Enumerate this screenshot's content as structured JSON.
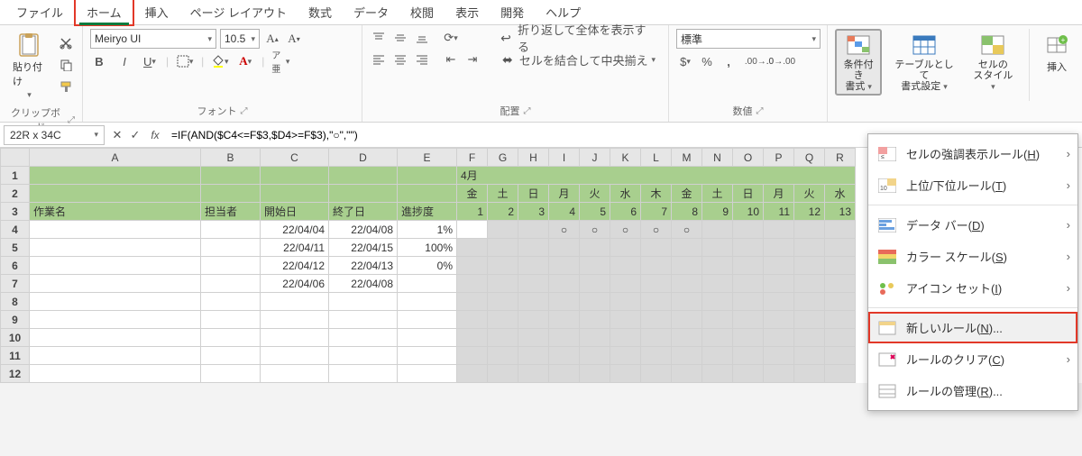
{
  "colors": {
    "accent_green": "#0d7a3e",
    "highlight_red": "#e23828",
    "header_green": "#a8cf8e",
    "selection_gray": "#d9d9d9",
    "grid": "#d0d0d0"
  },
  "tabs": {
    "file": "ファイル",
    "home": "ホーム",
    "insert": "挿入",
    "pagelayout": "ページ レイアウト",
    "formulas": "数式",
    "data": "データ",
    "review": "校閲",
    "view": "表示",
    "developer": "開発",
    "help": "ヘルプ"
  },
  "ribbon": {
    "clipboard": {
      "paste": "貼り付け",
      "label": "クリップボード"
    },
    "font": {
      "name": "Meiryo UI",
      "size": "10.5",
      "label": "フォント"
    },
    "alignment": {
      "wrap": "折り返して全体を表示する",
      "merge": "セルを結合して中央揃え",
      "label": "配置"
    },
    "number": {
      "format": "標準",
      "label": "数値"
    },
    "styles": {
      "conditional": "条件付き\n書式",
      "table_format": "テーブルとして\n書式設定",
      "cell_styles": "セルの\nスタイル"
    },
    "insert_btn": "挿入"
  },
  "namebox": "22R x 34C",
  "formula": "=IF(AND($C4<=F$3,$D4>=F$3),\"○\",\"\")",
  "columns": {
    "A": "A",
    "B": "B",
    "C": "C",
    "D": "D",
    "E": "E",
    "daycols": [
      "F",
      "G",
      "H",
      "I",
      "J",
      "K",
      "L",
      "M",
      "N",
      "O",
      "P",
      "Q",
      "R"
    ]
  },
  "col_widths": {
    "A": 190,
    "B": 66,
    "C": 76,
    "D": 76,
    "E": 66,
    "day": 34
  },
  "headers": {
    "month": "4月",
    "weekdays": [
      "金",
      "土",
      "日",
      "月",
      "火",
      "水",
      "木",
      "金",
      "土",
      "日",
      "月",
      "火",
      "水"
    ],
    "days": [
      1,
      2,
      3,
      4,
      5,
      6,
      7,
      8,
      9,
      10,
      11,
      12,
      13
    ],
    "A": "作業名",
    "B": "担当者",
    "C": "開始日",
    "D": "終了日",
    "E": "進捗度"
  },
  "rows": [
    {
      "n": 4,
      "C": "22/04/04",
      "D": "22/04/08",
      "E": "1%",
      "marks": [
        0,
        0,
        0,
        1,
        1,
        1,
        1,
        1,
        0,
        0,
        0,
        0,
        0
      ]
    },
    {
      "n": 5,
      "C": "22/04/11",
      "D": "22/04/15",
      "E": "100%",
      "marks": [
        0,
        0,
        0,
        0,
        0,
        0,
        0,
        0,
        0,
        0,
        0,
        0,
        0
      ]
    },
    {
      "n": 6,
      "C": "22/04/12",
      "D": "22/04/13",
      "E": "0%",
      "marks": [
        0,
        0,
        0,
        0,
        0,
        0,
        0,
        0,
        0,
        0,
        0,
        0,
        0
      ]
    },
    {
      "n": 7,
      "C": "22/04/06",
      "D": "22/04/08",
      "E": "",
      "marks": [
        0,
        0,
        0,
        0,
        0,
        0,
        0,
        0,
        0,
        0,
        0,
        0,
        0
      ]
    }
  ],
  "empty_rows": [
    8,
    9,
    10,
    11,
    12
  ],
  "cf_menu": {
    "highlight": "セルの強調表示ルール(<u>H</u>)",
    "toprank": "上位/下位ルール(<u>T</u>)",
    "databar": "データ バー(<u>D</u>)",
    "colorscale": "カラー スケール(<u>S</u>)",
    "iconset": "アイコン セット(<u>I</u>)",
    "newrule": "新しいルール(<u>N</u>)...",
    "clear": "ルールのクリア(<u>C</u>)",
    "manage": "ルールの管理(<u>R</u>)..."
  }
}
